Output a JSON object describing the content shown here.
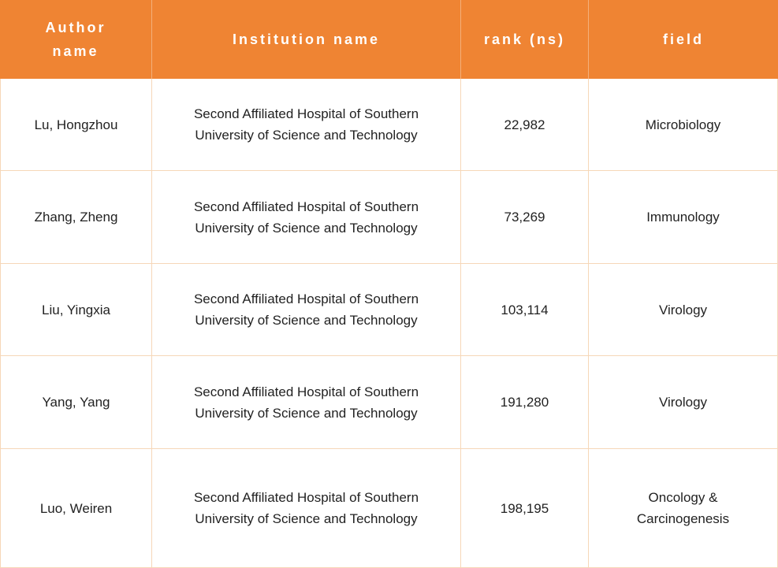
{
  "table": {
    "headers": [
      "Author name",
      "Institution name",
      "rank (ns)",
      "field"
    ],
    "rows": [
      {
        "author": "Lu, Hongzhou",
        "institution": "Second Affiliated Hospital of Southern University of Science and Technology",
        "rank": "22,982",
        "field": "Microbiology"
      },
      {
        "author": "Zhang, Zheng",
        "institution": "Second Affiliated Hospital of Southern University of Science and Technology",
        "rank": "73,269",
        "field": "Immunology"
      },
      {
        "author": "Liu, Yingxia",
        "institution": "Second Affiliated Hospital of Southern University of Science and Technology",
        "rank": "103,114",
        "field": "Virology"
      },
      {
        "author": "Yang, Yang",
        "institution": "Second Affiliated Hospital of Southern University of Science and Technology",
        "rank": "191,280",
        "field": "Virology"
      },
      {
        "author": "Luo, Weiren",
        "institution": "Second Affiliated Hospital of Southern University of Science and Technology",
        "rank": "198,195",
        "field": "Oncology & Carcinogenesis"
      }
    ]
  },
  "colors": {
    "header_background": "#EF8433",
    "header_text": "#FFFFFF",
    "grid_line": "#F6D7B8",
    "body_text": "#222222",
    "body_background": "#FFFFFF"
  }
}
